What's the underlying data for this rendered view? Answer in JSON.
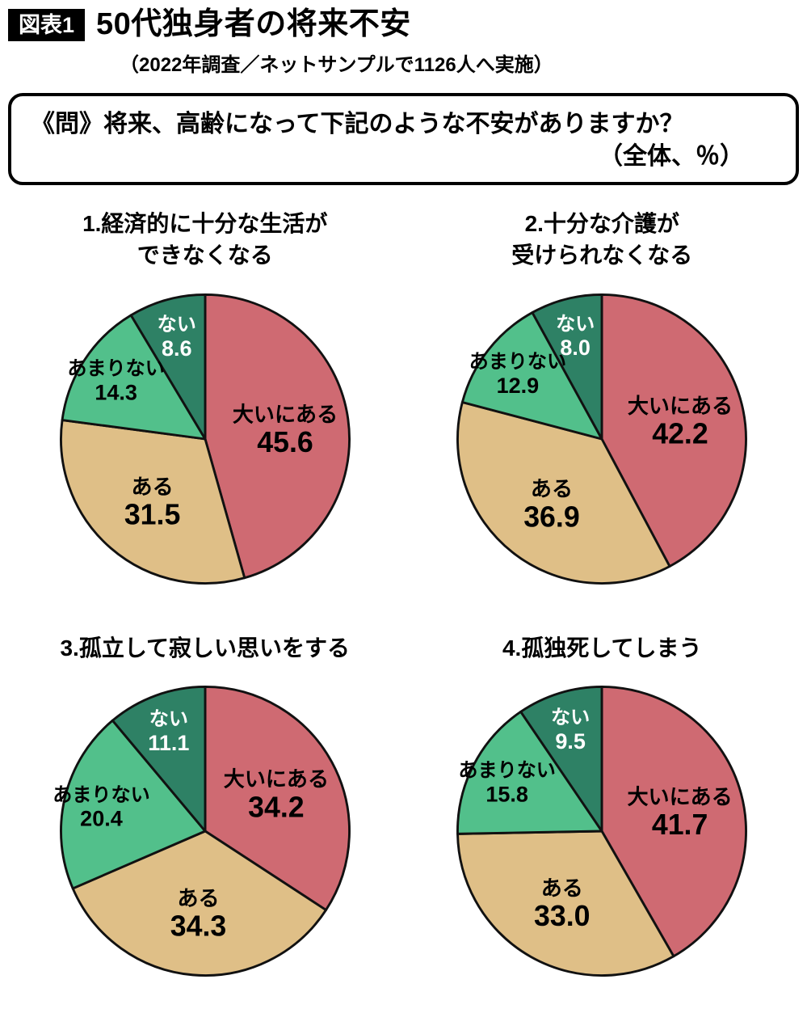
{
  "header": {
    "tag": "図表1",
    "title": "50代独身者の将来不安",
    "subtitle": "（2022年調査／ネットサンプルで1126人へ実施）"
  },
  "question": {
    "line1": "《問》将来、高齢になって下記のような不安がありますか？",
    "line2": "（全体、％）"
  },
  "style": {
    "outline": "#111111",
    "color_very": "#cf6a72",
    "color_some": "#dfbf87",
    "color_little": "#52c08b",
    "color_none": "#2e8165"
  },
  "chart_data": [
    {
      "type": "pie",
      "start_angle": "top",
      "direction": "clockwise",
      "title_lines": [
        "1.経済的に十分な生活が",
        "できなくなる"
      ],
      "slices": [
        {
          "label": "大いにある",
          "value": 45.6,
          "display": "45.6",
          "color": "#cf6a72",
          "text_color": "#000000"
        },
        {
          "label": "ある",
          "value": 31.5,
          "display": "31.5",
          "color": "#dfbf87",
          "text_color": "#000000"
        },
        {
          "label": "あまりない",
          "value": 14.3,
          "display": "14.3",
          "color": "#52c08b",
          "text_color": "#000000"
        },
        {
          "label": "ない",
          "value": 8.6,
          "display": "8.6",
          "color": "#2e8165",
          "text_color": "#ffffff"
        }
      ]
    },
    {
      "type": "pie",
      "start_angle": "top",
      "direction": "clockwise",
      "title_lines": [
        "2.十分な介護が",
        "受けられなくなる"
      ],
      "slices": [
        {
          "label": "大いにある",
          "value": 42.2,
          "display": "42.2",
          "color": "#cf6a72",
          "text_color": "#000000"
        },
        {
          "label": "ある",
          "value": 36.9,
          "display": "36.9",
          "color": "#dfbf87",
          "text_color": "#000000"
        },
        {
          "label": "あまりない",
          "value": 12.9,
          "display": "12.9",
          "color": "#52c08b",
          "text_color": "#000000"
        },
        {
          "label": "ない",
          "value": 8.0,
          "display": "8.0",
          "color": "#2e8165",
          "text_color": "#ffffff"
        }
      ]
    },
    {
      "type": "pie",
      "start_angle": "top",
      "direction": "clockwise",
      "title_lines": [
        "3.孤立して寂しい思いをする"
      ],
      "slices": [
        {
          "label": "大いにある",
          "value": 34.2,
          "display": "34.2",
          "color": "#cf6a72",
          "text_color": "#000000"
        },
        {
          "label": "ある",
          "value": 34.3,
          "display": "34.3",
          "color": "#dfbf87",
          "text_color": "#000000"
        },
        {
          "label": "あまりない",
          "value": 20.4,
          "display": "20.4",
          "color": "#52c08b",
          "text_color": "#000000"
        },
        {
          "label": "ない",
          "value": 11.1,
          "display": "11.1",
          "color": "#2e8165",
          "text_color": "#ffffff"
        }
      ]
    },
    {
      "type": "pie",
      "start_angle": "top",
      "direction": "clockwise",
      "title_lines": [
        "4.孤独死してしまう"
      ],
      "slices": [
        {
          "label": "大いにある",
          "value": 41.7,
          "display": "41.7",
          "color": "#cf6a72",
          "text_color": "#000000"
        },
        {
          "label": "ある",
          "value": 33.0,
          "display": "33.0",
          "color": "#dfbf87",
          "text_color": "#000000"
        },
        {
          "label": "あまりない",
          "value": 15.8,
          "display": "15.8",
          "color": "#52c08b",
          "text_color": "#000000"
        },
        {
          "label": "ない",
          "value": 9.5,
          "display": "9.5",
          "color": "#2e8165",
          "text_color": "#ffffff"
        }
      ]
    }
  ]
}
